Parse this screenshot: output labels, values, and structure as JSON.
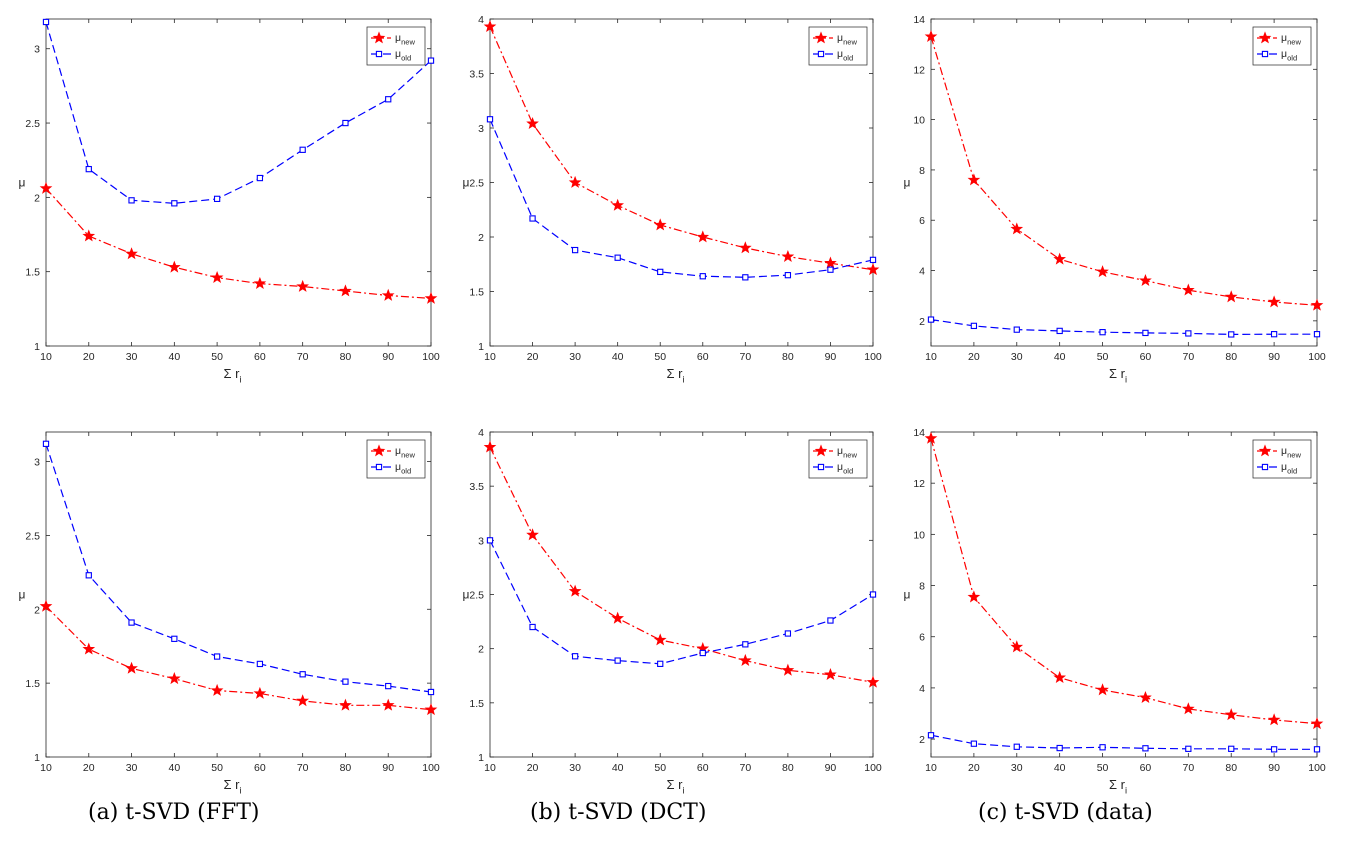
{
  "captions": [
    "(a) t-SVD (FFT)",
    "(b) t-SVD (DCT)",
    "(c) t-SVD (data)"
  ],
  "colors": {
    "new": "#ff0000",
    "old": "#0000ff",
    "axis": "#262626"
  },
  "chart_data": [
    {
      "type": "line",
      "title": "",
      "xlabel": "Σ r",
      "xlabel_sub": "i",
      "ylabel": "μ",
      "x": [
        10,
        20,
        30,
        40,
        50,
        60,
        70,
        80,
        90,
        100
      ],
      "xlim": [
        10,
        100
      ],
      "ylim": [
        1,
        3.2
      ],
      "yticks": [
        1,
        1.5,
        2,
        2.5,
        3
      ],
      "xticks": [
        10,
        20,
        30,
        40,
        50,
        60,
        70,
        80,
        90,
        100
      ],
      "legend_position": "top-right",
      "series": [
        {
          "name": "μ",
          "sub": "new",
          "values": [
            2.06,
            1.74,
            1.62,
            1.53,
            1.46,
            1.42,
            1.4,
            1.37,
            1.34,
            1.32
          ]
        },
        {
          "name": "μ",
          "sub": "old",
          "values": [
            3.18,
            2.19,
            1.98,
            1.96,
            1.99,
            2.13,
            2.32,
            2.5,
            2.66,
            2.92
          ]
        }
      ]
    },
    {
      "type": "line",
      "title": "",
      "xlabel": "Σ r",
      "xlabel_sub": "i",
      "ylabel": "μ",
      "x": [
        10,
        20,
        30,
        40,
        50,
        60,
        70,
        80,
        90,
        100
      ],
      "xlim": [
        10,
        100
      ],
      "ylim": [
        1,
        4
      ],
      "yticks": [
        1,
        1.5,
        2,
        2.5,
        3,
        3.5,
        4
      ],
      "xticks": [
        10,
        20,
        30,
        40,
        50,
        60,
        70,
        80,
        90,
        100
      ],
      "legend_position": "top-right",
      "series": [
        {
          "name": "μ",
          "sub": "new",
          "values": [
            3.93,
            3.04,
            2.5,
            2.29,
            2.11,
            2.0,
            1.9,
            1.82,
            1.76,
            1.7
          ]
        },
        {
          "name": "μ",
          "sub": "old",
          "values": [
            3.08,
            2.17,
            1.88,
            1.81,
            1.68,
            1.64,
            1.63,
            1.65,
            1.7,
            1.79
          ]
        }
      ]
    },
    {
      "type": "line",
      "title": "",
      "xlabel": "Σ r",
      "xlabel_sub": "i",
      "ylabel": "μ",
      "x": [
        10,
        20,
        30,
        40,
        50,
        60,
        70,
        80,
        90,
        100
      ],
      "xlim": [
        10,
        100
      ],
      "ylim": [
        1,
        14
      ],
      "yticks": [
        2,
        4,
        6,
        8,
        10,
        12,
        14
      ],
      "xticks": [
        10,
        20,
        30,
        40,
        50,
        60,
        70,
        80,
        90,
        100
      ],
      "legend_position": "top-right",
      "series": [
        {
          "name": "μ",
          "sub": "new",
          "values": [
            13.3,
            7.6,
            5.65,
            4.45,
            3.95,
            3.6,
            3.22,
            2.95,
            2.75,
            2.62
          ]
        },
        {
          "name": "μ",
          "sub": "old",
          "values": [
            2.05,
            1.8,
            1.65,
            1.6,
            1.55,
            1.52,
            1.5,
            1.46,
            1.47,
            1.47
          ]
        }
      ]
    },
    {
      "type": "line",
      "title": "",
      "xlabel": "Σ r",
      "xlabel_sub": "i",
      "ylabel": "μ",
      "x": [
        10,
        20,
        30,
        40,
        50,
        60,
        70,
        80,
        90,
        100
      ],
      "xlim": [
        10,
        100
      ],
      "ylim": [
        1,
        3.2
      ],
      "yticks": [
        1,
        1.5,
        2,
        2.5,
        3
      ],
      "xticks": [
        10,
        20,
        30,
        40,
        50,
        60,
        70,
        80,
        90,
        100
      ],
      "legend_position": "top-right",
      "series": [
        {
          "name": "μ",
          "sub": "new",
          "values": [
            2.02,
            1.73,
            1.6,
            1.53,
            1.45,
            1.43,
            1.38,
            1.35,
            1.35,
            1.32
          ]
        },
        {
          "name": "μ",
          "sub": "old",
          "values": [
            3.12,
            2.23,
            1.91,
            1.8,
            1.68,
            1.63,
            1.56,
            1.51,
            1.48,
            1.44
          ]
        }
      ]
    },
    {
      "type": "line",
      "title": "",
      "xlabel": "Σ r",
      "xlabel_sub": "i",
      "ylabel": "μ",
      "x": [
        10,
        20,
        30,
        40,
        50,
        60,
        70,
        80,
        90,
        100
      ],
      "xlim": [
        10,
        100
      ],
      "ylim": [
        1,
        4
      ],
      "yticks": [
        1,
        1.5,
        2,
        2.5,
        3,
        3.5,
        4
      ],
      "xticks": [
        10,
        20,
        30,
        40,
        50,
        60,
        70,
        80,
        90,
        100
      ],
      "legend_position": "top-right",
      "series": [
        {
          "name": "μ",
          "sub": "new",
          "values": [
            3.86,
            3.05,
            2.53,
            2.28,
            2.08,
            2.0,
            1.89,
            1.8,
            1.76,
            1.69
          ]
        },
        {
          "name": "μ",
          "sub": "old",
          "values": [
            3.0,
            2.2,
            1.93,
            1.89,
            1.86,
            1.96,
            2.04,
            2.14,
            2.26,
            2.5
          ]
        }
      ]
    },
    {
      "type": "line",
      "title": "",
      "xlabel": "Σ r",
      "xlabel_sub": "i",
      "ylabel": "μ",
      "x": [
        10,
        20,
        30,
        40,
        50,
        60,
        70,
        80,
        90,
        100
      ],
      "xlim": [
        10,
        100
      ],
      "ylim": [
        1.3,
        14
      ],
      "yticks": [
        2,
        4,
        6,
        8,
        10,
        12,
        14
      ],
      "xticks": [
        10,
        20,
        30,
        40,
        50,
        60,
        70,
        80,
        90,
        100
      ],
      "legend_position": "top-right",
      "series": [
        {
          "name": "μ",
          "sub": "new",
          "values": [
            13.75,
            7.55,
            5.6,
            4.4,
            3.92,
            3.62,
            3.18,
            2.95,
            2.75,
            2.6
          ]
        },
        {
          "name": "μ",
          "sub": "old",
          "values": [
            2.15,
            1.82,
            1.7,
            1.65,
            1.68,
            1.64,
            1.62,
            1.62,
            1.6,
            1.6
          ]
        }
      ]
    }
  ]
}
